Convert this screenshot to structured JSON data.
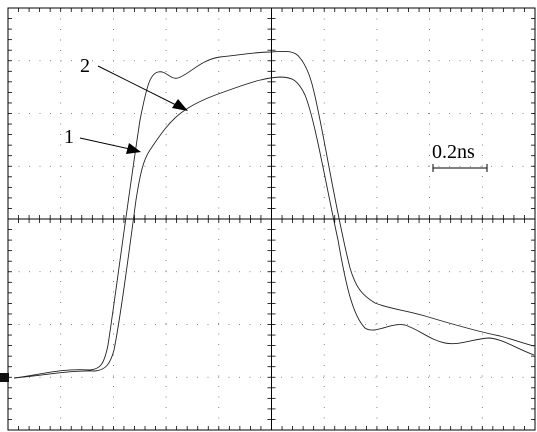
{
  "trace_labels": {
    "trace_2": "2",
    "trace_1": "1"
  },
  "scale_bar": {
    "label": "0.2ns"
  }
}
